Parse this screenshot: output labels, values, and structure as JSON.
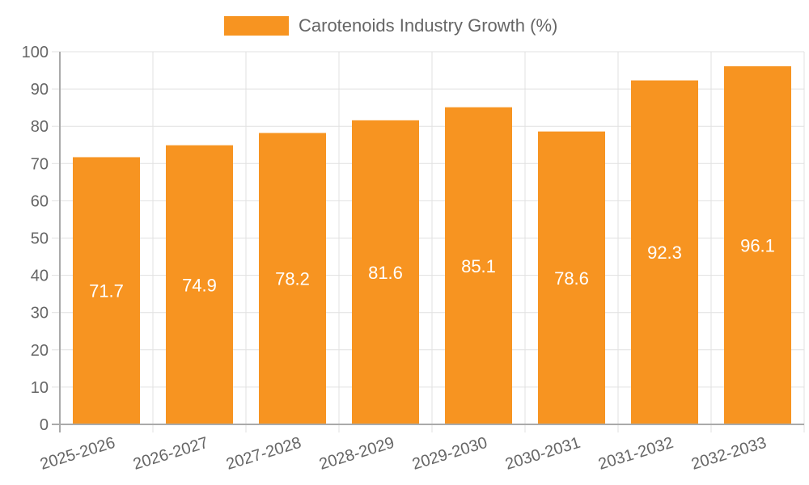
{
  "chart_data": {
    "type": "bar",
    "title": "",
    "xlabel": "",
    "ylabel": "",
    "categories": [
      "2025-2026",
      "2026-2027",
      "2027-2028",
      "2028-2029",
      "2029-2030",
      "2030-2031",
      "2031-2032",
      "2032-2033"
    ],
    "series": [
      {
        "name": "Carotenoids Industry Growth (%)",
        "values": [
          71.7,
          74.9,
          78.2,
          81.6,
          85.1,
          78.6,
          92.3,
          96.1
        ],
        "color": "#f79421"
      }
    ],
    "data_labels": [
      "71.7",
      "74.9",
      "78.2",
      "81.6",
      "85.1",
      "78.6",
      "92.3",
      "96.1"
    ],
    "ylim": [
      0,
      100
    ],
    "yticks": [
      "0",
      "10",
      "20",
      "30",
      "40",
      "50",
      "60",
      "70",
      "80",
      "90",
      "100"
    ],
    "grid": true,
    "legend": "top-center"
  }
}
